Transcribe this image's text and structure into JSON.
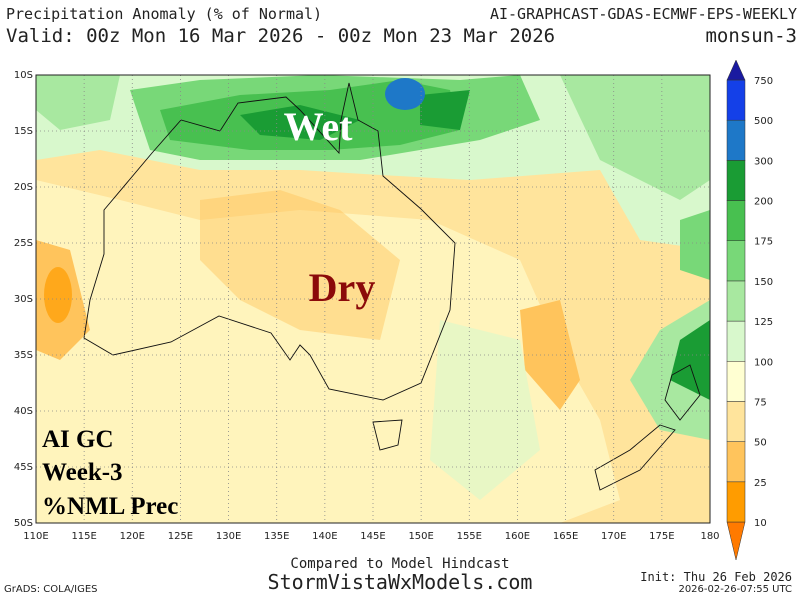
{
  "header": {
    "title": "Precipitation Anomaly (% of Normal)",
    "model": "AI-GRAPHCAST-GDAS-ECMWF-EPS-WEEKLY",
    "valid": "Valid: 00z Mon 16 Mar 2026 - 00z Mon 23 Mar 2026",
    "region": "monsun-3"
  },
  "map": {
    "lat_labels": [
      "10S",
      "15S",
      "20S",
      "25S",
      "30S",
      "35S",
      "40S",
      "45S",
      "50S"
    ],
    "lon_labels": [
      "110E",
      "115E",
      "120E",
      "125E",
      "130E",
      "135E",
      "140E",
      "145E",
      "150E",
      "155E",
      "160E",
      "165E",
      "170E",
      "175E",
      "180"
    ],
    "annotations": {
      "wet": "Wet",
      "dry": "Dry",
      "line1": "AI GC",
      "line2": "Week-3",
      "line3": "%NML Prec"
    }
  },
  "colorbar": {
    "levels": [
      10,
      25,
      50,
      75,
      100,
      125,
      150,
      175,
      200,
      300,
      500,
      750
    ],
    "colors": [
      "#ff7a00",
      "#ff9c00",
      "#ffc45c",
      "#ffe49c",
      "#ffffd2",
      "#d8f8cc",
      "#a8e8a0",
      "#78d878",
      "#48c050",
      "#1a9c34",
      "#1e78c8",
      "#1440e8",
      "#1a1aa0"
    ]
  },
  "footer": {
    "compared": "Compared to Model Hindcast",
    "site": "StormVistaWxModels.com",
    "init": "Init: Thu 26 Feb 2026",
    "stamp": "2026-02-26-07:55 UTC",
    "grads": "GrADS: COLA/IGES"
  }
}
